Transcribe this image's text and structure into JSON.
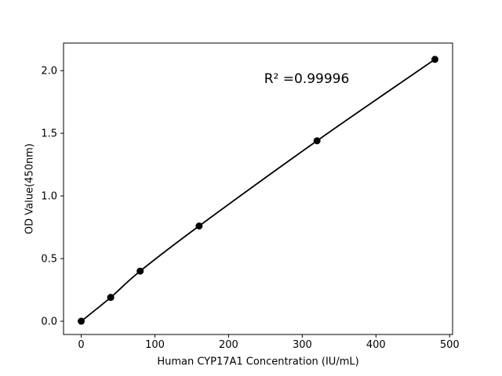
{
  "chart_data": {
    "type": "scatter",
    "title": "",
    "xlabel": "Human CYP17A1 Concentration (IU/mL)",
    "ylabel": "OD Value(450nm)",
    "annotation": "R² =0.99996",
    "x": [
      0,
      40,
      80,
      160,
      320,
      480
    ],
    "y": [
      0.0,
      0.19,
      0.4,
      0.76,
      1.44,
      2.09
    ],
    "xlim": [
      -24,
      504
    ],
    "ylim": [
      -0.106,
      2.22
    ],
    "xticks": [
      {
        "value": 0,
        "label": "0"
      },
      {
        "value": 100,
        "label": "100"
      },
      {
        "value": 200,
        "label": "200"
      },
      {
        "value": 300,
        "label": "300"
      },
      {
        "value": 400,
        "label": "400"
      },
      {
        "value": 500,
        "label": "500"
      }
    ],
    "yticks": [
      {
        "value": 0.0,
        "label": "0.0"
      },
      {
        "value": 0.5,
        "label": "0.5"
      },
      {
        "value": 1.0,
        "label": "1.0"
      },
      {
        "value": 1.5,
        "label": "1.5"
      },
      {
        "value": 2.0,
        "label": "2.0"
      }
    ],
    "grid": false,
    "legend": null,
    "line_color": "#000000",
    "marker_color": "#000000",
    "background_color": "#ffffff"
  }
}
